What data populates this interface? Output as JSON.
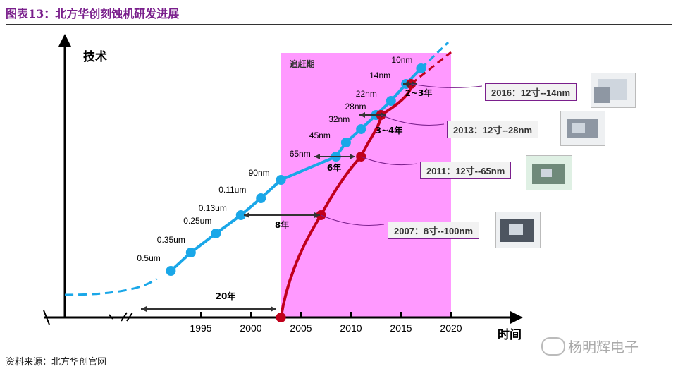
{
  "page": {
    "title": "图表13：北方华创刻蚀机研发进展",
    "source": "资料来源：北方华创官网",
    "watermark": "杨明辉电子"
  },
  "colors": {
    "title": "#7a1f8c",
    "blue_series": "#1aa7e8",
    "red_series": "#c0001b",
    "highlight": "#ff99ff"
  },
  "chart_data": {
    "type": "line",
    "title": "",
    "xlabel": "时间",
    "ylabel": "技术",
    "xlim": [
      1985,
      2020
    ],
    "xticks": [
      1995,
      2000,
      2005,
      2010,
      2015,
      2020
    ],
    "highlight_region": {
      "label": "追赶期",
      "x": [
        2003,
        2020
      ]
    },
    "series": [
      {
        "points": [
          {
            "x": 1992,
            "label": "0.5um"
          },
          {
            "x": 1994,
            "label": "0.35um"
          },
          {
            "x": 1996.5,
            "label": "0.25um"
          },
          {
            "x": 1999,
            "label": "0.13um"
          },
          {
            "x": 2001,
            "label": "0.11um"
          },
          {
            "x": 2003,
            "label": "90nm"
          },
          {
            "x": 2008.5,
            "label": "65nm"
          },
          {
            "x": 2009.5,
            "label": "45nm"
          },
          {
            "x": 2011,
            "label": "32nm"
          },
          {
            "x": 2012.5,
            "label": "28nm"
          },
          {
            "x": 2014,
            "label": "22nm"
          },
          {
            "x": 2015.5,
            "label": "14nm"
          },
          {
            "x": 2017,
            "label": "10nm"
          }
        ]
      },
      {
        "points": [
          {
            "x": 2003,
            "label": ""
          },
          {
            "x": 2007,
            "label": "100nm"
          },
          {
            "x": 2011,
            "label": "65nm"
          },
          {
            "x": 2013,
            "label": "28nm"
          },
          {
            "x": 2016,
            "label": "14nm"
          }
        ]
      }
    ],
    "gap_annotations": [
      {
        "label": "20年"
      },
      {
        "label": "8年"
      },
      {
        "label": "6年"
      },
      {
        "label": "3~4年"
      },
      {
        "label": "2~3年"
      }
    ],
    "milestones": [
      {
        "year_label": "2007：",
        "text": "8寸--100nm"
      },
      {
        "year_label": "2011：",
        "text": "12寸--65nm"
      },
      {
        "year_label": "2013：",
        "text": "12寸--28nm"
      },
      {
        "year_label": "2016：",
        "text": "12寸--14nm"
      }
    ]
  }
}
